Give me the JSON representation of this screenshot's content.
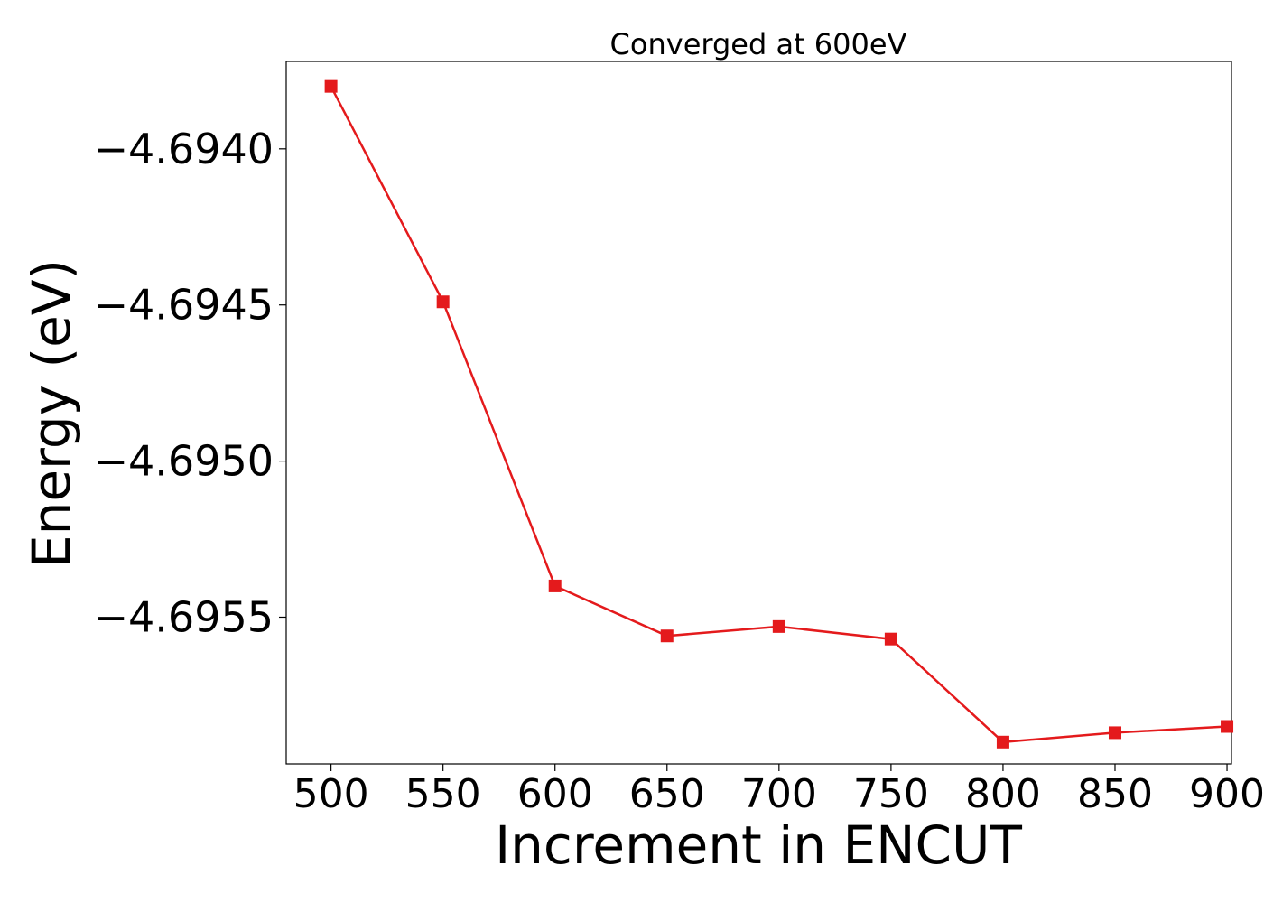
{
  "chart_data": {
    "type": "line",
    "title": "Converged at 600eV",
    "xlabel": "Increment in ENCUT",
    "ylabel": "Energy (eV)",
    "x": [
      500,
      550,
      600,
      650,
      700,
      750,
      800,
      850,
      900
    ],
    "series": [
      {
        "values": [
          -4.6938,
          -4.69449,
          -4.6954,
          -4.69556,
          -4.69553,
          -4.69557,
          -4.6959,
          -4.69587,
          -4.69585
        ]
      }
    ],
    "x_ticks": [
      500,
      550,
      600,
      650,
      700,
      750,
      800,
      850,
      900
    ],
    "x_tick_labels": [
      "500",
      "550",
      "600",
      "650",
      "700",
      "750",
      "800",
      "850",
      "900"
    ],
    "y_ticks": [
      -4.694,
      -4.6945,
      -4.695,
      -4.6955
    ],
    "y_tick_labels": [
      "−4.6940",
      "−4.6945",
      "−4.6950",
      "−4.6955"
    ],
    "xlim": [
      480,
      902
    ],
    "ylim": [
      -4.69597,
      -4.69372
    ],
    "grid": false,
    "legend": "none",
    "colors": {
      "line": "#e41a1c",
      "marker": "#e41a1c",
      "axis": "#000000"
    },
    "marker": "square"
  }
}
